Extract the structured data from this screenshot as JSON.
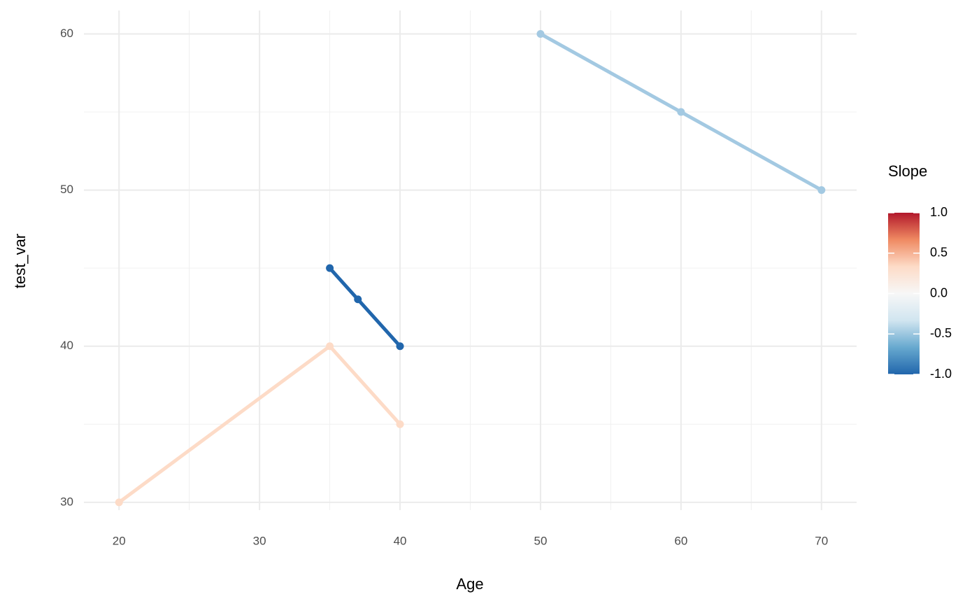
{
  "chart_data": {
    "type": "line",
    "x_label": "Age",
    "y_label": "test_var",
    "xlim": [
      17.5,
      72.5
    ],
    "ylim": [
      29.5,
      61.5
    ],
    "xticks": [
      20,
      30,
      40,
      50,
      60,
      70
    ],
    "yticks": [
      30,
      40,
      50,
      60
    ],
    "x_minor_ticks": [
      25,
      35,
      45,
      55,
      65
    ],
    "y_minor_ticks": [
      35,
      45,
      55
    ],
    "grid": true,
    "series": [
      {
        "color": "#fddbc7",
        "x": [
          20,
          35,
          40
        ],
        "values": [
          30,
          40,
          35
        ]
      },
      {
        "color": "#2166ac",
        "x": [
          35,
          37,
          40
        ],
        "values": [
          45,
          43,
          40
        ]
      },
      {
        "color": "#a3c9e2",
        "x": [
          50,
          60,
          70
        ],
        "values": [
          60,
          55,
          50
        ]
      }
    ],
    "colorbar": {
      "title": "Slope",
      "lim": [
        -1,
        1
      ],
      "colors": [
        "#2166ac",
        "#67a9cf",
        "#d1e5f0",
        "#f7f7f7",
        "#fddbc7",
        "#ef8a62",
        "#b2182b"
      ],
      "ticks": [
        {
          "value": 1,
          "label": "1.0"
        },
        {
          "value": 0.5,
          "label": "0.5"
        },
        {
          "value": 0,
          "label": "0.0"
        },
        {
          "value": -0.5,
          "label": "-0.5"
        },
        {
          "value": -1,
          "label": "-1.0"
        }
      ]
    }
  }
}
